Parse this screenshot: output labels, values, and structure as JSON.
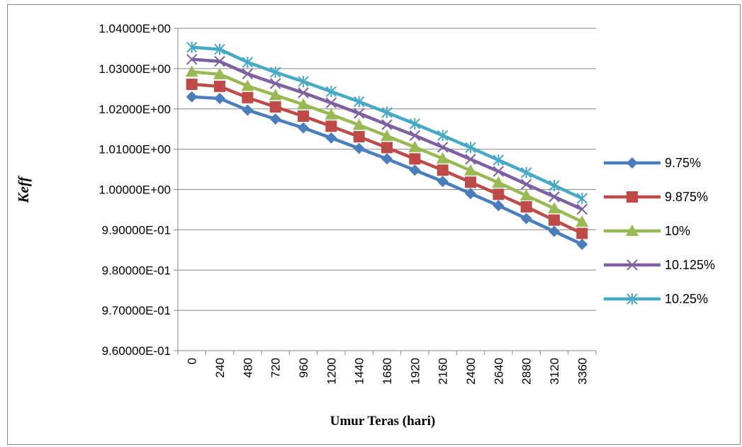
{
  "chart_data": {
    "type": "line",
    "xlabel": "Umur Teras (hari)",
    "ylabel": "Keff",
    "categories": [
      "0",
      "240",
      "480",
      "720",
      "960",
      "1200",
      "1440",
      "1680",
      "1920",
      "2160",
      "2400",
      "2640",
      "2880",
      "3120",
      "3360"
    ],
    "y_ticks": [
      "9.60000E-01",
      "9.70000E-01",
      "9.80000E-01",
      "9.90000E-01",
      "1.00000E+00",
      "1.01000E+00",
      "1.02000E+00",
      "1.03000E+00",
      "1.04000E+00"
    ],
    "ylim": [
      0.96,
      1.04
    ],
    "grid": true,
    "legend_position": "right",
    "series": [
      {
        "name": "9.75%",
        "color": "#4a7ebb",
        "marker": "diamond",
        "values": [
          1.023,
          1.0226,
          1.0197,
          1.0175,
          1.0153,
          1.0128,
          1.0102,
          1.0076,
          1.0048,
          1.002,
          0.999,
          0.996,
          0.9928,
          0.9896,
          0.9864
        ]
      },
      {
        "name": "9.875%",
        "color": "#be4b48",
        "marker": "square",
        "values": [
          1.0261,
          1.0256,
          1.0228,
          1.0205,
          1.0182,
          1.0157,
          1.0131,
          1.0104,
          1.0076,
          1.0048,
          1.0018,
          0.9988,
          0.9957,
          0.9924,
          0.9891
        ]
      },
      {
        "name": "10%",
        "color": "#98b954",
        "marker": "triangle",
        "values": [
          1.0292,
          1.0286,
          1.0257,
          1.0234,
          1.0211,
          1.0186,
          1.016,
          1.0133,
          1.0105,
          1.0077,
          1.0047,
          1.0017,
          0.9985,
          0.9953,
          0.992
        ]
      },
      {
        "name": "10.125%",
        "color": "#7d60a0",
        "marker": "x",
        "values": [
          1.0323,
          1.0318,
          1.0287,
          1.0263,
          1.024,
          1.0215,
          1.0189,
          1.0161,
          1.0134,
          1.0105,
          1.0075,
          1.0045,
          1.0013,
          0.9982,
          0.9951
        ]
      },
      {
        "name": "10.25%",
        "color": "#46aac5",
        "marker": "asterisk",
        "values": [
          1.0353,
          1.0348,
          1.0316,
          1.0291,
          1.0268,
          1.0243,
          1.0218,
          1.0191,
          1.0163,
          1.0134,
          1.0104,
          1.0073,
          1.0042,
          1.001,
          0.9978
        ]
      }
    ]
  }
}
